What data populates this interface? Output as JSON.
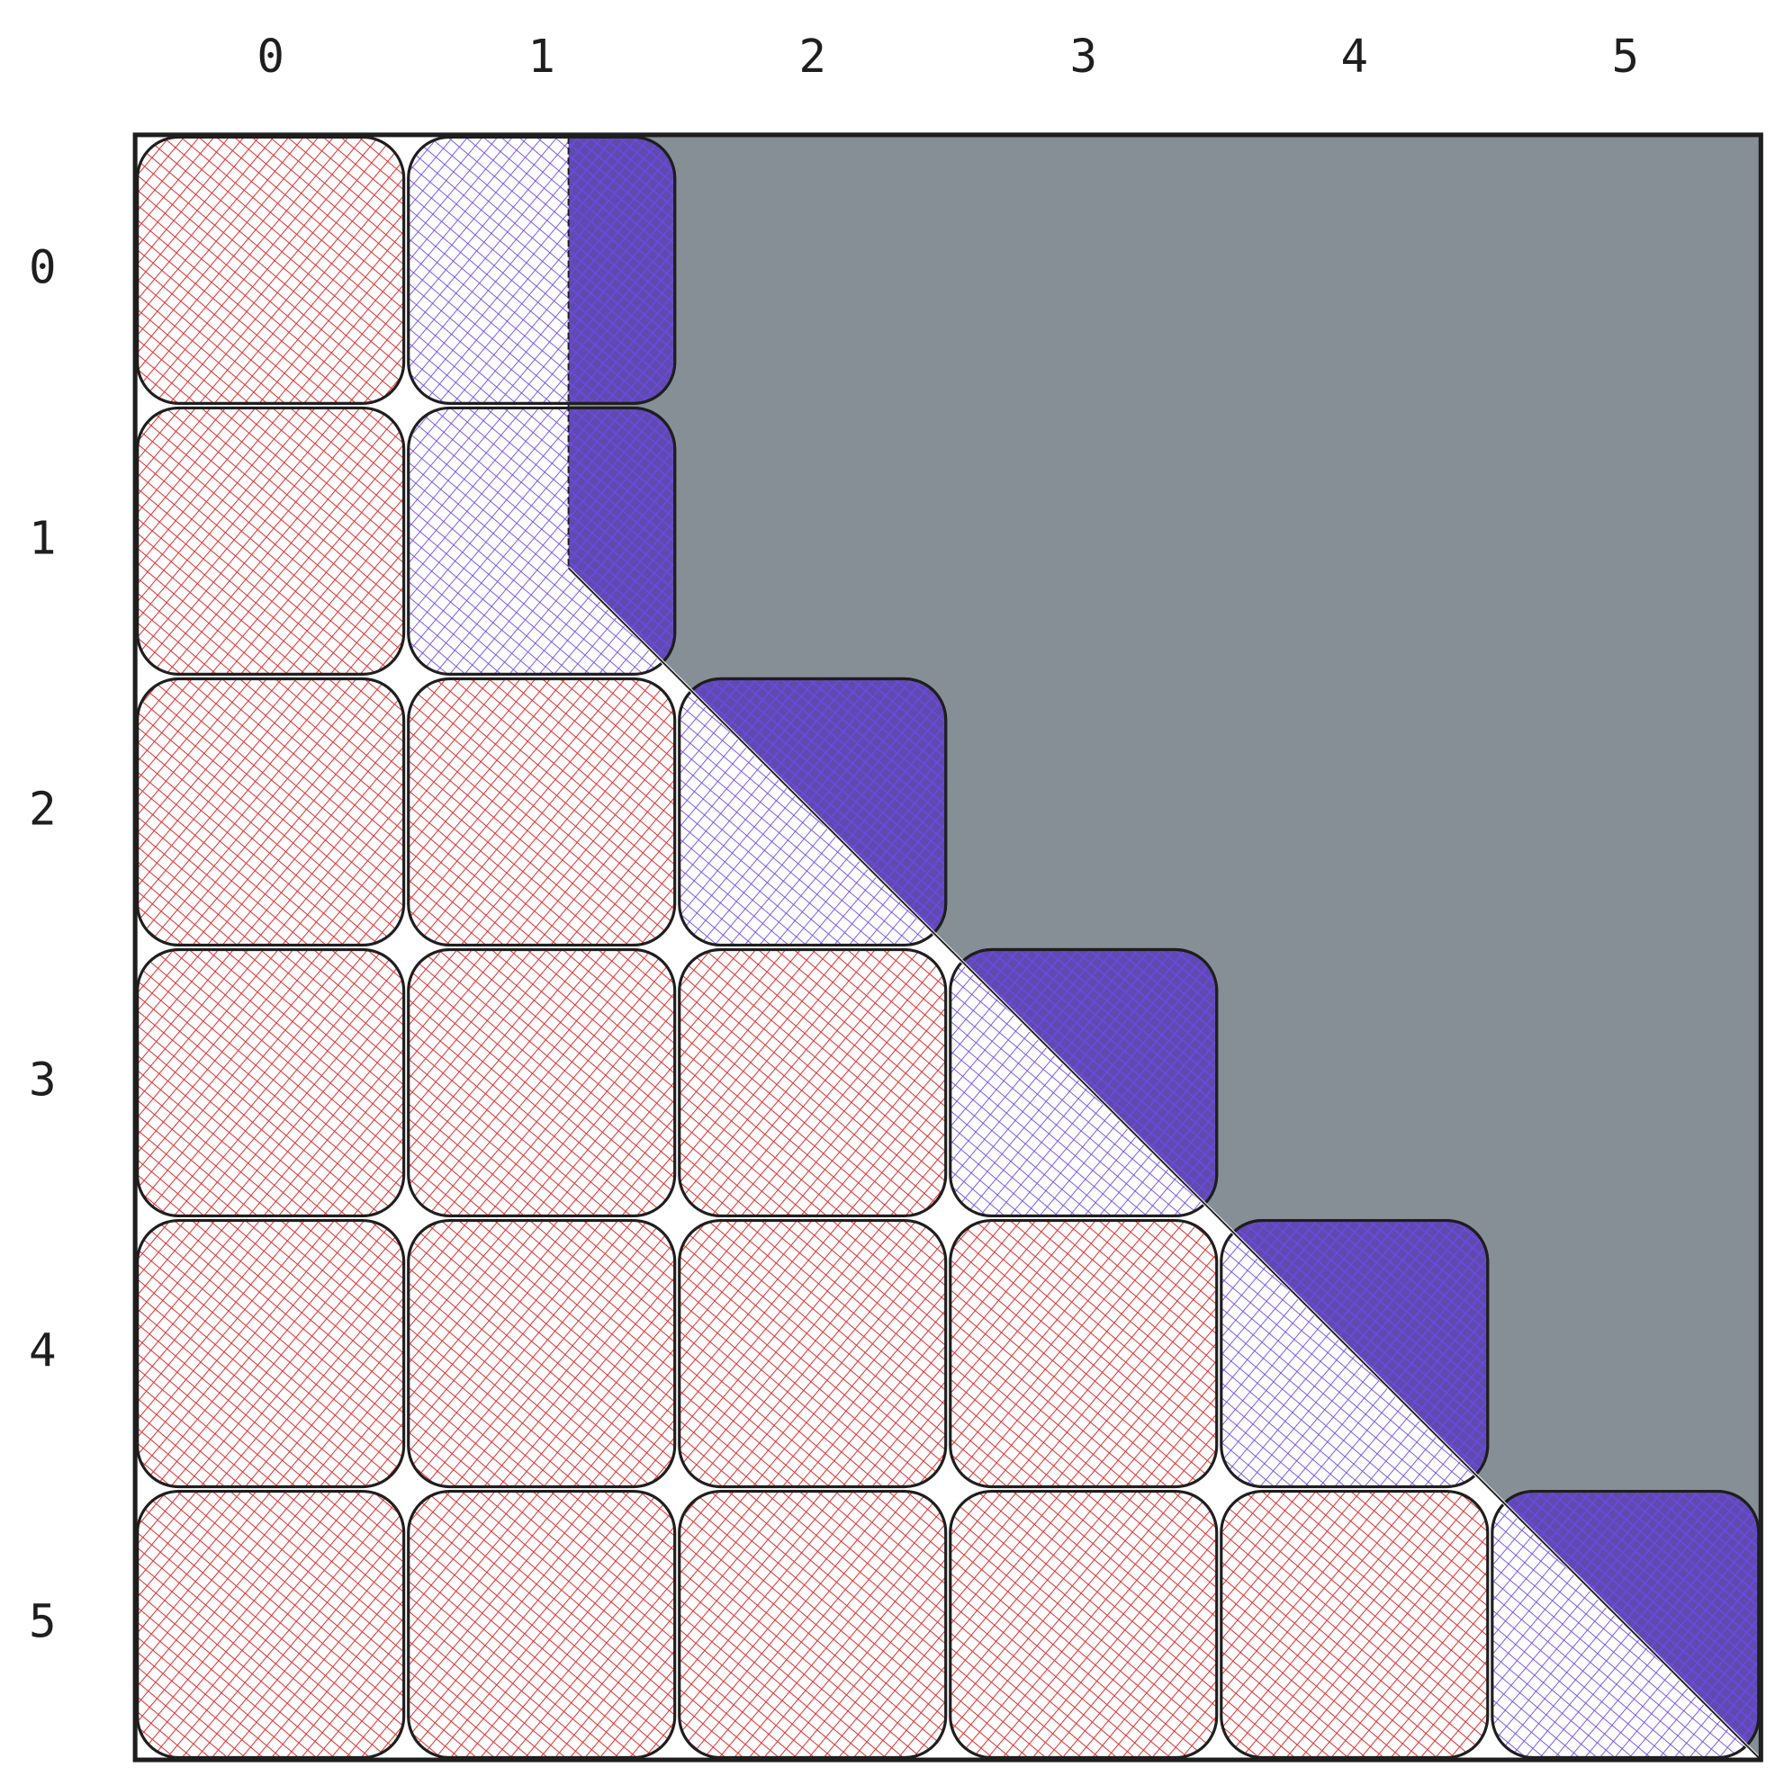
{
  "columns": [
    "0",
    "1",
    "2",
    "3",
    "4",
    "5"
  ],
  "rows": [
    "0",
    "1",
    "2",
    "3",
    "4",
    "5"
  ]
}
